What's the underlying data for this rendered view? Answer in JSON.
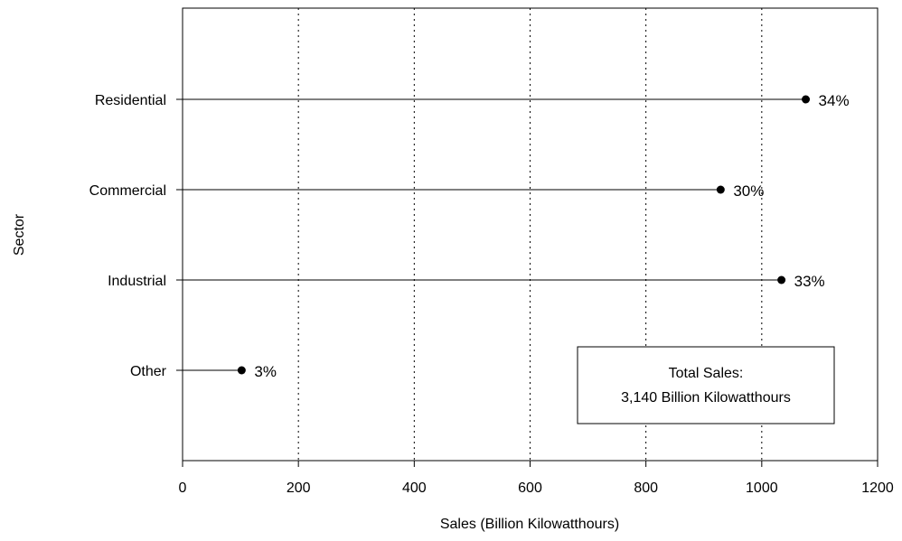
{
  "chart_data": {
    "type": "lollipop",
    "xlabel": "Sales (Billion Kilowatthours)",
    "ylabel": "Sector",
    "xlim": [
      0,
      1200
    ],
    "xticks": [
      0,
      200,
      400,
      600,
      800,
      1000,
      1200
    ],
    "grid": "vertical dotted",
    "categories": [
      "Residential",
      "Commercial",
      "Industrial",
      "Other"
    ],
    "values": [
      1076,
      929,
      1034,
      102
    ],
    "data_labels": [
      "34%",
      "30%",
      "33%",
      "3%"
    ],
    "annotation": {
      "line1": "Total Sales:",
      "line2": "3,140 Billion Kilowatthours"
    }
  }
}
